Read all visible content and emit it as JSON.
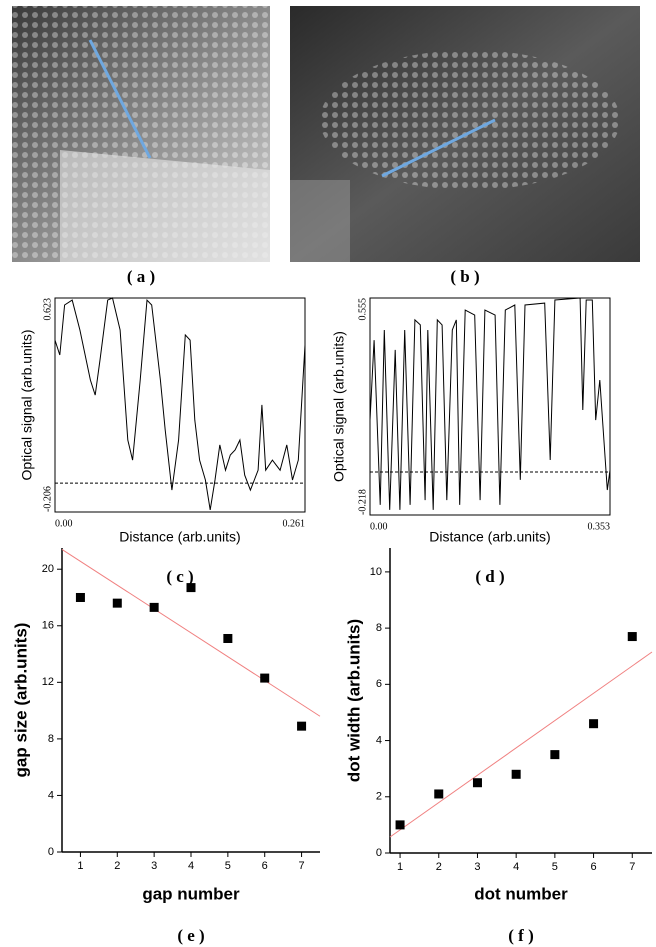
{
  "images": [
    {
      "label": "( a )"
    },
    {
      "label": "( b )"
    }
  ],
  "chart_data": [
    {
      "type": "line",
      "label": "( c )",
      "frame": true,
      "xlabel": "Distance (arb.units)",
      "ylabel": "Optical signal (arb.units)",
      "xlim": [
        0,
        0.261
      ],
      "ylim": [
        -0.206,
        0.623
      ],
      "xticks": [
        {
          "value": 0,
          "label": "0.00"
        },
        0.261
      ],
      "yticks": [
        -0.206,
        0.623
      ],
      "reference_line": -0.094,
      "color": "#000000",
      "x": [
        0,
        0.005,
        0.01,
        0.018,
        0.026,
        0.037,
        0.042,
        0.047,
        0.055,
        0.06,
        0.068,
        0.076,
        0.081,
        0.089,
        0.096,
        0.101,
        0.11,
        0.115,
        0.122,
        0.129,
        0.136,
        0.141,
        0.146,
        0.151,
        0.157,
        0.162,
        0.167,
        0.172,
        0.178,
        0.183,
        0.188,
        0.193,
        0.198,
        0.204,
        0.212,
        0.216,
        0.22,
        0.227,
        0.235,
        0.242,
        0.248,
        0.254,
        0.261
      ],
      "values": [
        0.46,
        0.402,
        0.596,
        0.615,
        0.499,
        0.305,
        0.247,
        0.383,
        0.615,
        0.623,
        0.499,
        0.073,
        -0.005,
        0.305,
        0.615,
        0.596,
        0.305,
        0.112,
        -0.121,
        0.073,
        0.48,
        0.46,
        0.15,
        -0.005,
        -0.082,
        -0.198,
        -0.082,
        0.054,
        -0.044,
        0.015,
        0.034,
        0.073,
        -0.063,
        -0.121,
        -0.044,
        0.209,
        -0.044,
        -0.005,
        -0.044,
        0.054,
        -0.082,
        -0.005,
        0.441
      ]
    },
    {
      "type": "line",
      "label": "( d )",
      "frame": true,
      "xlabel": "Distance (arb.units)",
      "ylabel": "Optical signal (arb.units)",
      "xlim": [
        0,
        0.353
      ],
      "ylim": [
        -0.218,
        0.555
      ],
      "xticks": [
        {
          "value": 0,
          "label": "0.00"
        },
        0.353
      ],
      "yticks": [
        -0.218,
        0.555
      ],
      "reference_line": -0.065,
      "color": "#000000",
      "x": [
        0,
        0.006,
        0.015,
        0.021,
        0.029,
        0.037,
        0.044,
        0.051,
        0.059,
        0.066,
        0.074,
        0.081,
        0.085,
        0.093,
        0.099,
        0.106,
        0.113,
        0.121,
        0.127,
        0.132,
        0.14,
        0.154,
        0.162,
        0.169,
        0.184,
        0.191,
        0.199,
        0.213,
        0.221,
        0.228,
        0.257,
        0.265,
        0.272,
        0.309,
        0.313,
        0.318,
        0.327,
        0.332,
        0.338,
        0.344,
        0.349,
        0.353
      ],
      "values": [
        0.12,
        0.405,
        -0.182,
        0.441,
        -0.2,
        0.37,
        -0.2,
        0.441,
        -0.182,
        0.477,
        0.459,
        -0.165,
        0.441,
        -0.2,
        0.477,
        0.459,
        -0.165,
        0.441,
        0.477,
        -0.182,
        0.512,
        0.494,
        -0.165,
        0.512,
        0.494,
        -0.182,
        0.512,
        0.53,
        -0.093,
        0.53,
        0.537,
        -0.022,
        0.548,
        0.555,
        0.156,
        0.548,
        0.548,
        0.12,
        0.263,
        0.049,
        -0.129,
        -0.058
      ]
    },
    {
      "type": "scatter",
      "label": "( e )",
      "frame": false,
      "xlabel": "gap number",
      "ylabel": "gap size (arb.units)",
      "xlim": [
        0.5,
        7.5
      ],
      "ylim": [
        0,
        21.5
      ],
      "xticks": [
        1,
        2,
        3,
        4,
        5,
        6,
        7
      ],
      "yticks": [
        0,
        4,
        8,
        12,
        16,
        20
      ],
      "color": "#000000",
      "x": [
        1,
        2,
        3,
        4,
        5,
        6,
        7
      ],
      "values": [
        18.0,
        17.6,
        17.3,
        18.7,
        15.1,
        12.3,
        8.9
      ],
      "fit": {
        "color": "#f08080",
        "x": [
          0.5,
          7.5
        ],
        "values": [
          21.4,
          9.6
        ]
      }
    },
    {
      "type": "scatter",
      "label": "( f )",
      "frame": false,
      "xlabel": "dot number",
      "ylabel": "dot width (arb.units)",
      "xlim": [
        0.74,
        7.51
      ],
      "ylim": [
        0,
        10.85
      ],
      "xticks": [
        1,
        2,
        3,
        4,
        5,
        6,
        7
      ],
      "yticks": [
        0,
        2,
        4,
        6,
        8,
        10
      ],
      "color": "#000000",
      "x": [
        1,
        2,
        3,
        4,
        5,
        6,
        7
      ],
      "values": [
        1.0,
        2.1,
        2.5,
        2.8,
        3.5,
        4.6,
        7.7
      ],
      "fit": {
        "color": "#f08080",
        "x": [
          0.74,
          7.51
        ],
        "values": [
          0.57,
          7.15
        ]
      }
    }
  ]
}
